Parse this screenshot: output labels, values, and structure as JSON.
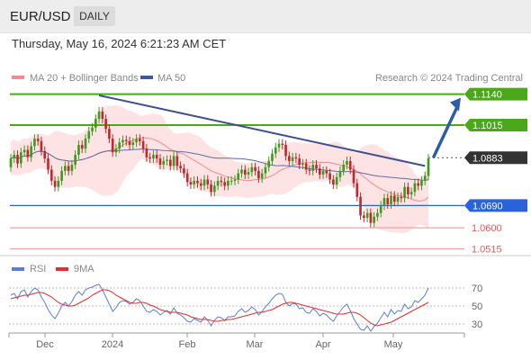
{
  "header": {
    "symbol": "EUR/USD",
    "timeframe": "DAILY",
    "datetime": "Thursday, May 16, 2024 6:21:23 AM CET"
  },
  "chart_data": [
    {
      "type": "line",
      "legend": [
        {
          "name": "MA 20 + Bollinger Bands",
          "color": "#f28b8b"
        },
        {
          "name": "MA 50",
          "color": "#3a5a9a"
        }
      ],
      "copyright": "Research © 2024 Trading Central",
      "x_ticks": [
        "Dec",
        "2024",
        "Feb",
        "Mar",
        "Apr",
        "May"
      ],
      "ylim": [
        1.0495,
        1.1175
      ],
      "levels": [
        {
          "value": 1.114,
          "label": "1.1140",
          "kind": "resistance",
          "color": "#4aa81a"
        },
        {
          "value": 1.1015,
          "label": "1.1015",
          "kind": "resistance",
          "color": "#4aa81a"
        },
        {
          "value": 1.0883,
          "label": "1.0883",
          "kind": "last",
          "color": "#333333"
        },
        {
          "value": 1.069,
          "label": "1.0690",
          "kind": "pivot",
          "color": "#2a62d9"
        },
        {
          "value": 1.06,
          "label": "1.0600",
          "kind": "support",
          "color": "#e25a5a"
        },
        {
          "value": 1.0515,
          "label": "1.0515",
          "kind": "support",
          "color": "#e25a5a"
        }
      ],
      "candles_close": [
        1.088,
        1.0895,
        1.086,
        1.0905,
        1.0915,
        1.0885,
        1.093,
        1.096,
        1.095,
        1.091,
        1.088,
        1.0835,
        1.079,
        1.0765,
        1.079,
        1.083,
        1.085,
        1.083,
        1.0855,
        1.0895,
        1.0935,
        1.092,
        1.096,
        1.099,
        1.1005,
        1.104,
        1.107,
        1.104,
        1.1,
        1.096,
        1.0905,
        1.092,
        1.0945,
        1.0955,
        1.095,
        1.0935,
        1.0945,
        1.096,
        1.095,
        1.092,
        1.0885,
        1.088,
        1.0895,
        1.088,
        1.0855,
        1.087,
        1.0875,
        1.085,
        1.089,
        1.085,
        1.084,
        1.082,
        1.0785,
        1.0775,
        1.079,
        1.078,
        1.077,
        1.0795,
        1.0775,
        1.0745,
        1.077,
        1.079,
        1.0785,
        1.077,
        1.079,
        1.079,
        1.0795,
        1.082,
        1.0835,
        1.0815,
        1.0825,
        1.0845,
        1.083,
        1.08,
        1.082,
        1.0845,
        1.087,
        1.09,
        1.0925,
        1.094,
        1.0935,
        1.089,
        1.087,
        1.0885,
        1.088,
        1.0855,
        1.086,
        1.0835,
        1.083,
        1.0855,
        1.084,
        1.0815,
        1.083,
        1.082,
        1.0795,
        1.0775,
        1.0805,
        1.083,
        1.0855,
        1.087,
        1.0835,
        1.078,
        1.0725,
        1.065,
        1.064,
        1.066,
        1.062,
        1.0645,
        1.066,
        1.069,
        1.072,
        1.0695,
        1.073,
        1.0705,
        1.0725,
        1.072,
        1.0765,
        1.0735,
        1.0745,
        1.078,
        1.077,
        1.079,
        1.081,
        1.088
      ],
      "candles_open": [
        1.0845,
        1.088,
        1.0895,
        1.086,
        1.0905,
        1.0915,
        1.0885,
        1.093,
        1.096,
        1.095,
        1.091,
        1.088,
        1.0835,
        1.079,
        1.0765,
        1.079,
        1.083,
        1.085,
        1.083,
        1.0855,
        1.0895,
        1.0935,
        1.092,
        1.096,
        1.099,
        1.1005,
        1.104,
        1.107,
        1.104,
        1.1,
        1.096,
        1.0905,
        1.092,
        1.0945,
        1.0955,
        1.095,
        1.0935,
        1.0945,
        1.096,
        1.095,
        1.092,
        1.0885,
        1.088,
        1.0895,
        1.088,
        1.0855,
        1.087,
        1.0875,
        1.085,
        1.089,
        1.085,
        1.084,
        1.082,
        1.0785,
        1.0775,
        1.079,
        1.078,
        1.077,
        1.0795,
        1.0775,
        1.0745,
        1.077,
        1.079,
        1.0785,
        1.077,
        1.079,
        1.079,
        1.0795,
        1.082,
        1.0835,
        1.0815,
        1.0825,
        1.0845,
        1.083,
        1.08,
        1.082,
        1.0845,
        1.087,
        1.09,
        1.0925,
        1.094,
        1.0935,
        1.089,
        1.087,
        1.0885,
        1.088,
        1.0855,
        1.086,
        1.0835,
        1.083,
        1.0855,
        1.084,
        1.0815,
        1.083,
        1.082,
        1.0795,
        1.0775,
        1.0805,
        1.083,
        1.0855,
        1.087,
        1.0835,
        1.078,
        1.0725,
        1.065,
        1.064,
        1.066,
        1.062,
        1.0645,
        1.066,
        1.069,
        1.072,
        1.0695,
        1.073,
        1.0705,
        1.0725,
        1.072,
        1.0765,
        1.0735,
        1.0745,
        1.078,
        1.077,
        1.079,
        1.081
      ],
      "trendline": [
        {
          "i": 26,
          "value": 1.1135
        },
        {
          "i": 122,
          "value": 1.085
        }
      ],
      "projection_arrow": {
        "from": 1.088,
        "to": 1.114
      }
    },
    {
      "type": "line",
      "legend": [
        {
          "name": "RSI",
          "color": "#5a7fd6"
        },
        {
          "name": "9MA",
          "color": "#e03030"
        }
      ],
      "ylim": [
        22,
        78
      ],
      "y_ticks": [
        "70",
        "50",
        "30"
      ],
      "rsi": [
        62,
        64,
        58,
        66,
        68,
        60,
        66,
        70,
        68,
        60,
        54,
        46,
        40,
        36,
        42,
        50,
        54,
        50,
        55,
        62,
        66,
        62,
        68,
        70,
        71,
        73,
        74,
        68,
        60,
        52,
        44,
        48,
        54,
        56,
        55,
        52,
        54,
        58,
        56,
        50,
        44,
        43,
        46,
        44,
        40,
        43,
        45,
        41,
        48,
        42,
        40,
        37,
        33,
        32,
        36,
        34,
        32,
        38,
        34,
        28,
        34,
        38,
        37,
        34,
        38,
        38,
        39,
        44,
        47,
        43,
        45,
        49,
        46,
        40,
        44,
        49,
        53,
        58,
        62,
        64,
        63,
        54,
        50,
        53,
        52,
        47,
        48,
        43,
        42,
        47,
        44,
        39,
        42,
        40,
        36,
        33,
        39,
        44,
        49,
        52,
        45,
        36,
        30,
        24,
        23,
        28,
        22,
        27,
        31,
        37,
        43,
        38,
        46,
        41,
        45,
        44,
        52,
        47,
        49,
        56,
        54,
        58,
        62,
        70
      ],
      "rsi_ma": [
        58,
        59,
        60,
        61,
        62,
        62,
        63,
        64,
        65,
        65,
        64,
        62,
        60,
        57,
        54,
        52,
        51,
        50,
        50,
        51,
        53,
        55,
        57,
        59,
        62,
        64,
        66,
        68,
        68,
        67,
        65,
        62,
        60,
        58,
        56,
        54,
        53,
        53,
        54,
        54,
        53,
        51,
        50,
        48,
        46,
        45,
        44,
        43,
        43,
        43,
        42,
        41,
        40,
        38,
        37,
        36,
        35,
        35,
        35,
        34,
        33,
        33,
        34,
        34,
        35,
        35,
        36,
        37,
        38,
        39,
        40,
        41,
        42,
        43,
        43,
        44,
        45,
        46,
        48,
        50,
        52,
        53,
        54,
        54,
        53,
        52,
        51,
        50,
        49,
        48,
        47,
        46,
        45,
        44,
        43,
        42,
        41,
        41,
        41,
        42,
        43,
        43,
        42,
        40,
        37,
        34,
        31,
        29,
        28,
        29,
        30,
        31,
        32,
        34,
        36,
        38,
        40,
        42,
        44,
        46,
        48,
        50,
        52,
        54
      ]
    }
  ]
}
